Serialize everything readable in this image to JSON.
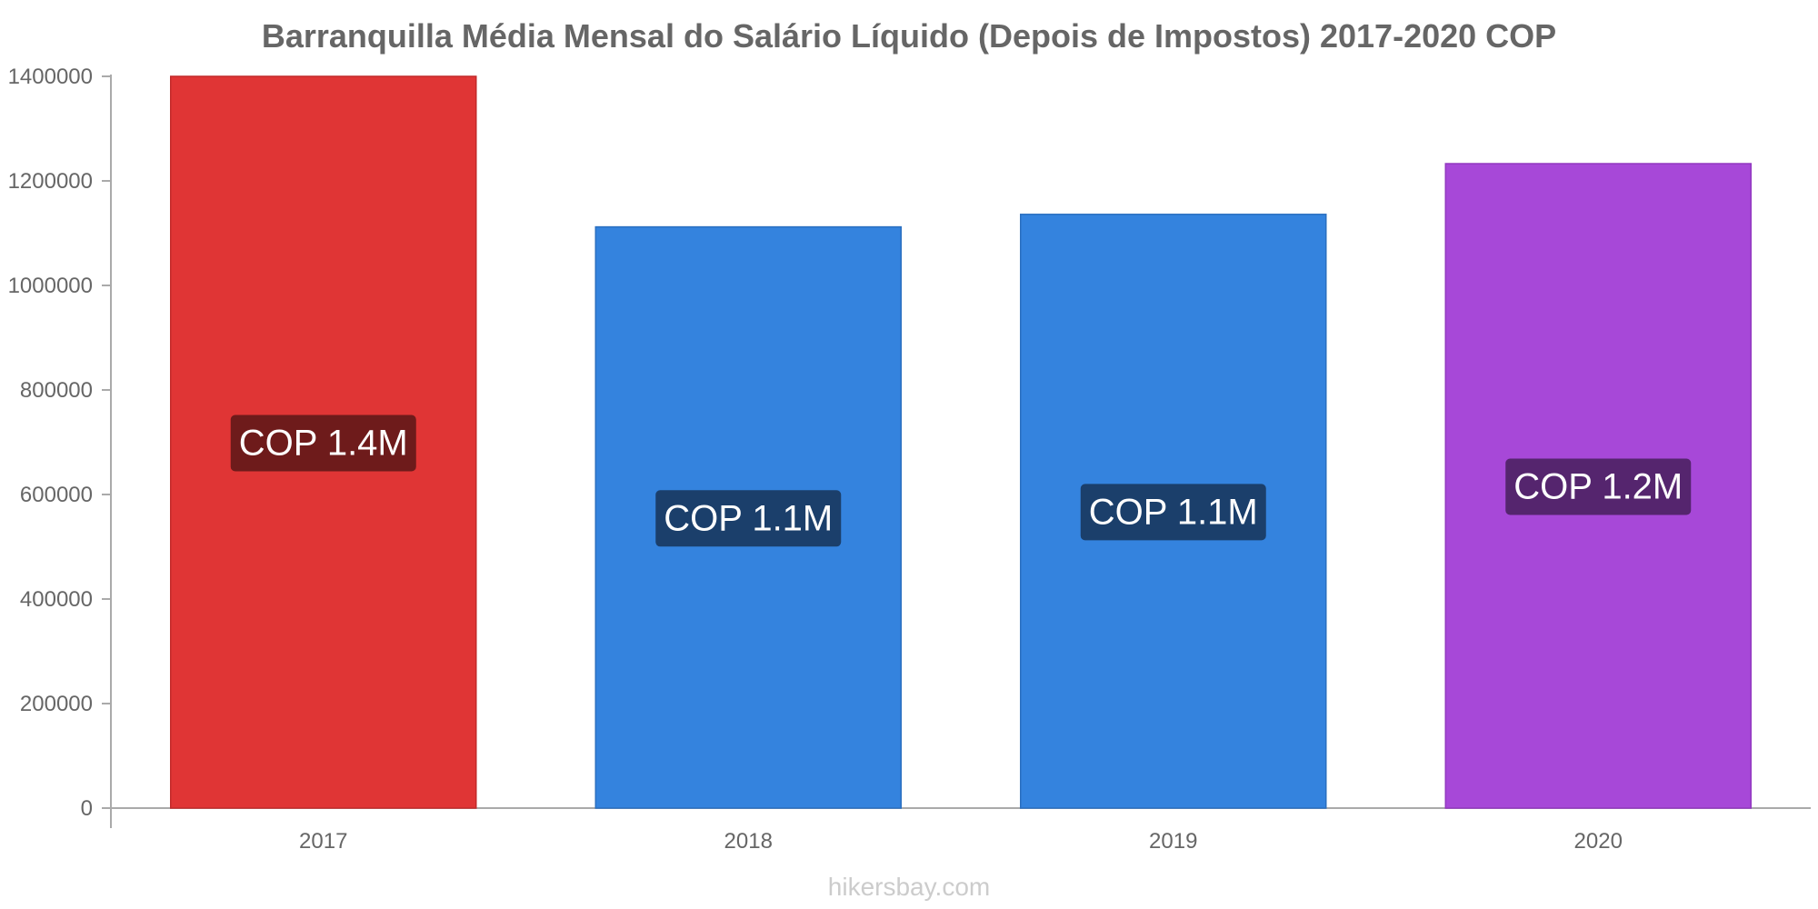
{
  "chart_data": {
    "type": "bar",
    "title": "Barranquilla Média Mensal do Salário Líquido (Depois de Impostos) 2017-2020 COP",
    "xlabel": "",
    "ylabel": "",
    "categories": [
      "2017",
      "2018",
      "2019",
      "2020"
    ],
    "values": [
      1400000,
      1112000,
      1136000,
      1233000
    ],
    "data_labels": [
      "COP 1.4M",
      "COP 1.1M",
      "COP 1.1M",
      "COP 1.2M"
    ],
    "bar_colors": [
      "#e03535",
      "#3483de",
      "#3483de",
      "#a748d8"
    ],
    "bar_border_colors": [
      "#c22a2a",
      "#2a6fc0",
      "#2a6fc0",
      "#9238c0"
    ],
    "label_bg_colors": [
      "#6e1b1b",
      "#1b3f6b",
      "#1b3f6b",
      "#55256e"
    ],
    "ylim": [
      0,
      1400000
    ],
    "yticks": [
      0,
      200000,
      400000,
      600000,
      800000,
      1000000,
      1200000,
      1400000
    ],
    "ytick_labels": [
      "0",
      "200000",
      "400000",
      "600000",
      "800000",
      "1000000",
      "1200000",
      "1400000"
    ],
    "grid": false,
    "legend": "none",
    "axis_color": "#aaaaaa",
    "text_color": "#666666"
  },
  "watermark": "hikersbay.com"
}
